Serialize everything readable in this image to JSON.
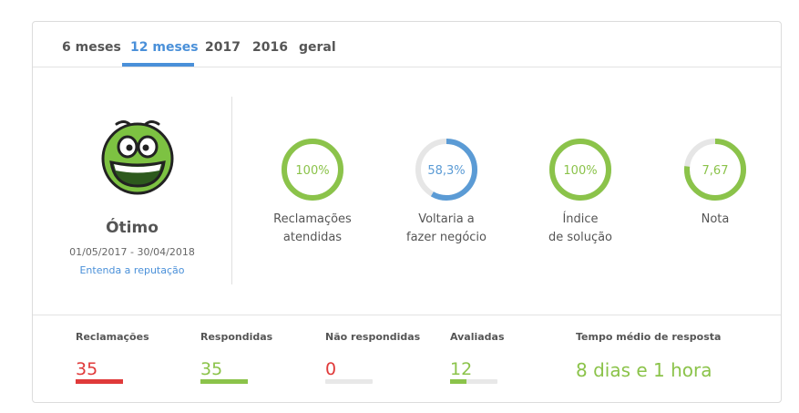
{
  "tabs": [
    "6 meses",
    "12 meses",
    "2017",
    "2016",
    "geral"
  ],
  "active_tab": "12 meses",
  "reputation": {
    "status": "Ótimo",
    "period": "01/05/2017 - 30/04/2018",
    "link": "Entenda a reputação"
  },
  "metrics": [
    {
      "value": "100%",
      "label_line1": "Reclamações",
      "label_line2": "atendidas",
      "progress": 1.0,
      "color": "#8bc34a"
    },
    {
      "value": "58,3%",
      "label_line1": "Voltaria a",
      "label_line2": "fazer negócio",
      "progress": 0.583,
      "color": "#5b9bd5"
    },
    {
      "value": "100%",
      "label_line1": "Índice",
      "label_line2": "de solução",
      "progress": 1.0,
      "color": "#8bc34a"
    },
    {
      "value": "7,67",
      "label_line1": "Nota",
      "label_line2": "",
      "progress": 0.767,
      "color": "#8bc34a"
    }
  ],
  "stats": [
    {
      "label": "Reclamações",
      "value": "35",
      "color": "#e03a3a",
      "fill": 1.0
    },
    {
      "label": "Respondidas",
      "value": "35",
      "color": "#8bc34a",
      "fill": 1.0
    },
    {
      "label": "Não respondidas",
      "value": "0",
      "color": "#e03a3a",
      "fill": 0.0
    },
    {
      "label": "Avaliadas",
      "value": "12",
      "color": "#8bc34a",
      "fill": 0.343
    }
  ],
  "response_time": {
    "label": "Tempo médio de resposta",
    "value": "8 dias e 1 hora",
    "color": "#8bc34a"
  },
  "icons": {
    "face": "happy-face-icon"
  }
}
